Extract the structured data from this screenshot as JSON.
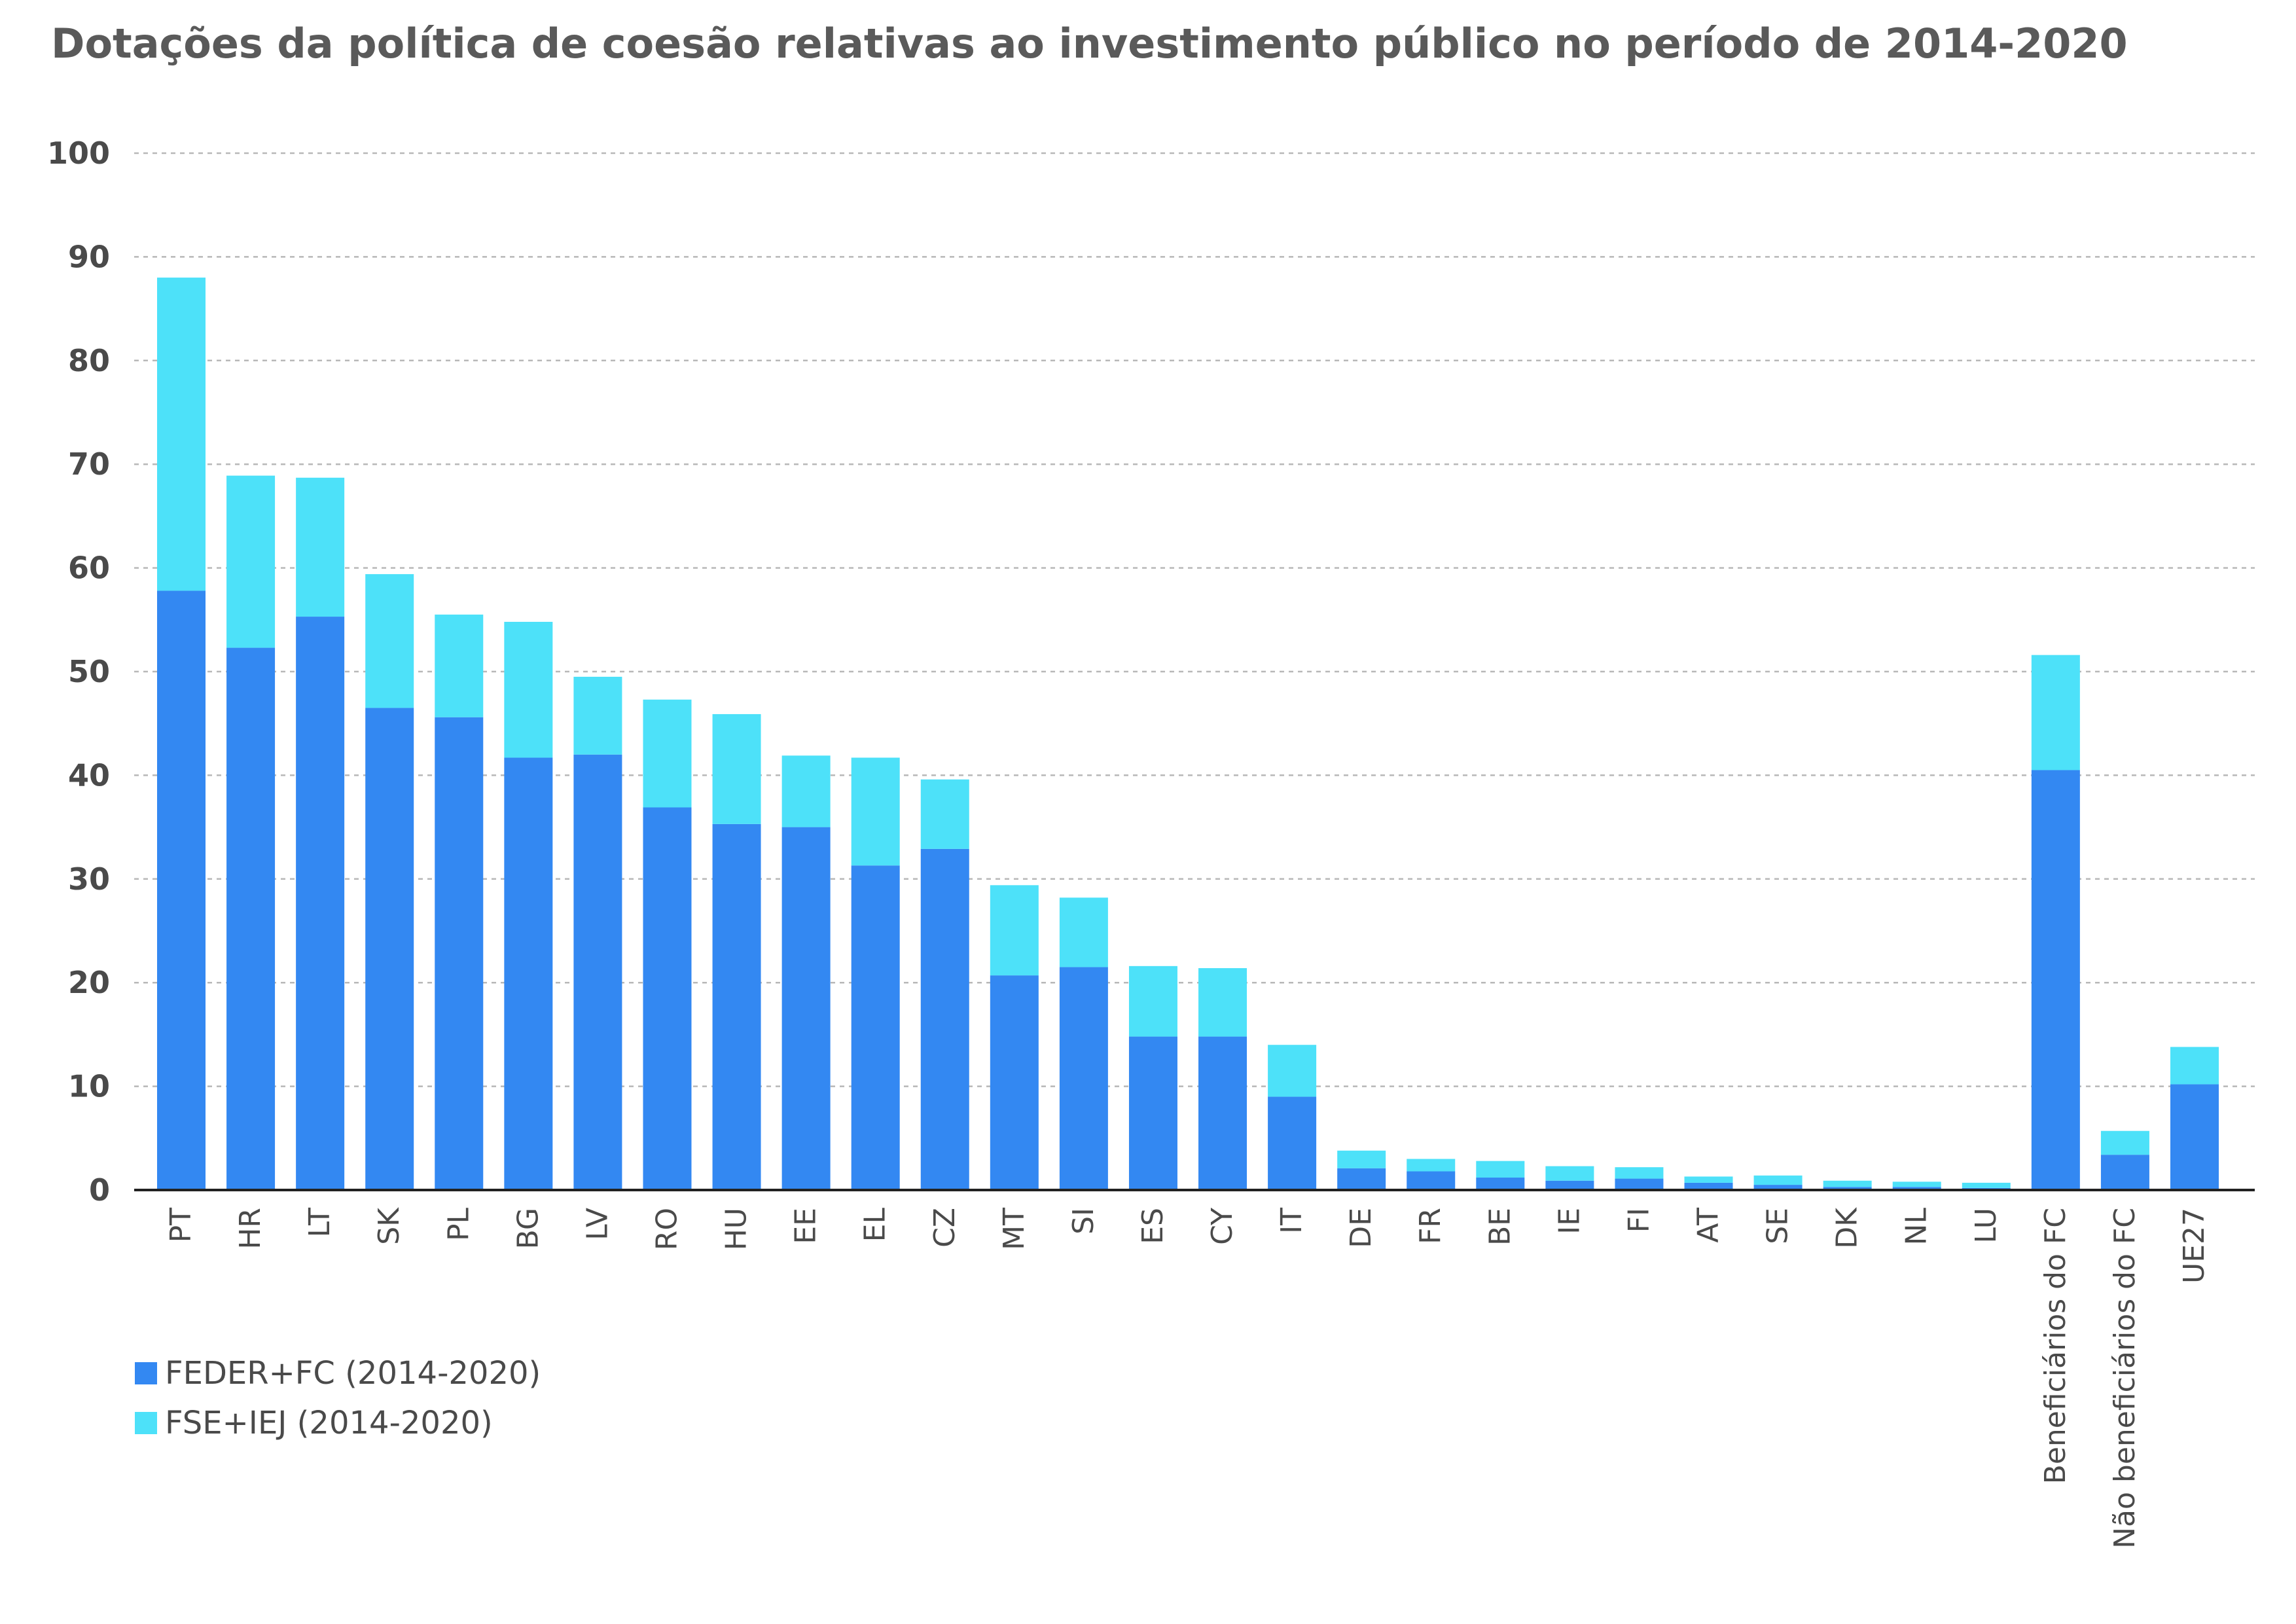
{
  "colors": {
    "series_0": "#3388f2",
    "series_1": "#4de1f9",
    "grid": "#b8b8b8",
    "axis": "#222222",
    "text": "#4a4a4a"
  },
  "chart_data": {
    "type": "bar",
    "stacked": true,
    "title": "Dotações da política de coesão relativas ao investimento público no   período  de 2014-2020",
    "xlabel": "",
    "ylabel": "",
    "ylim": [
      0,
      100
    ],
    "yticks": [
      "0",
      "10",
      "20",
      "30",
      "40",
      "50",
      "60",
      "70",
      "80",
      "90",
      "100"
    ],
    "grid": "horizontal-dashed",
    "legend_position": "bottom-left",
    "categories": [
      "PT",
      "HR",
      "LT",
      "SK",
      "PL",
      "BG",
      "LV",
      "RO",
      "HU",
      "EE",
      "EL",
      "CZ",
      "MT",
      "SI",
      "ES",
      "CY",
      "IT",
      "DE",
      "FR",
      "BE",
      "IE",
      "FI",
      "AT",
      "SE",
      "DK",
      "NL",
      "LU",
      "Beneficiários do FC",
      "Não beneficiários do FC",
      "UE27"
    ],
    "series": [
      {
        "name": "FEDER+FC (2014-2020)",
        "values": [
          57.8,
          52.3,
          55.3,
          46.5,
          45.6,
          41.7,
          42.0,
          36.9,
          35.3,
          35.0,
          31.3,
          32.9,
          20.7,
          21.5,
          14.8,
          14.8,
          9.0,
          2.1,
          1.8,
          1.2,
          0.9,
          1.1,
          0.7,
          0.5,
          0.3,
          0.3,
          0.2,
          40.5,
          3.4,
          10.2
        ]
      },
      {
        "name": "FSE+IEJ (2014-2020)",
        "values": [
          30.2,
          16.6,
          13.4,
          12.9,
          9.9,
          13.1,
          7.5,
          10.4,
          10.6,
          6.9,
          10.4,
          6.7,
          8.7,
          6.7,
          6.8,
          6.6,
          5.0,
          1.7,
          1.2,
          1.6,
          1.4,
          1.1,
          0.6,
          0.9,
          0.6,
          0.5,
          0.5,
          11.1,
          2.3,
          3.6
        ]
      }
    ]
  }
}
